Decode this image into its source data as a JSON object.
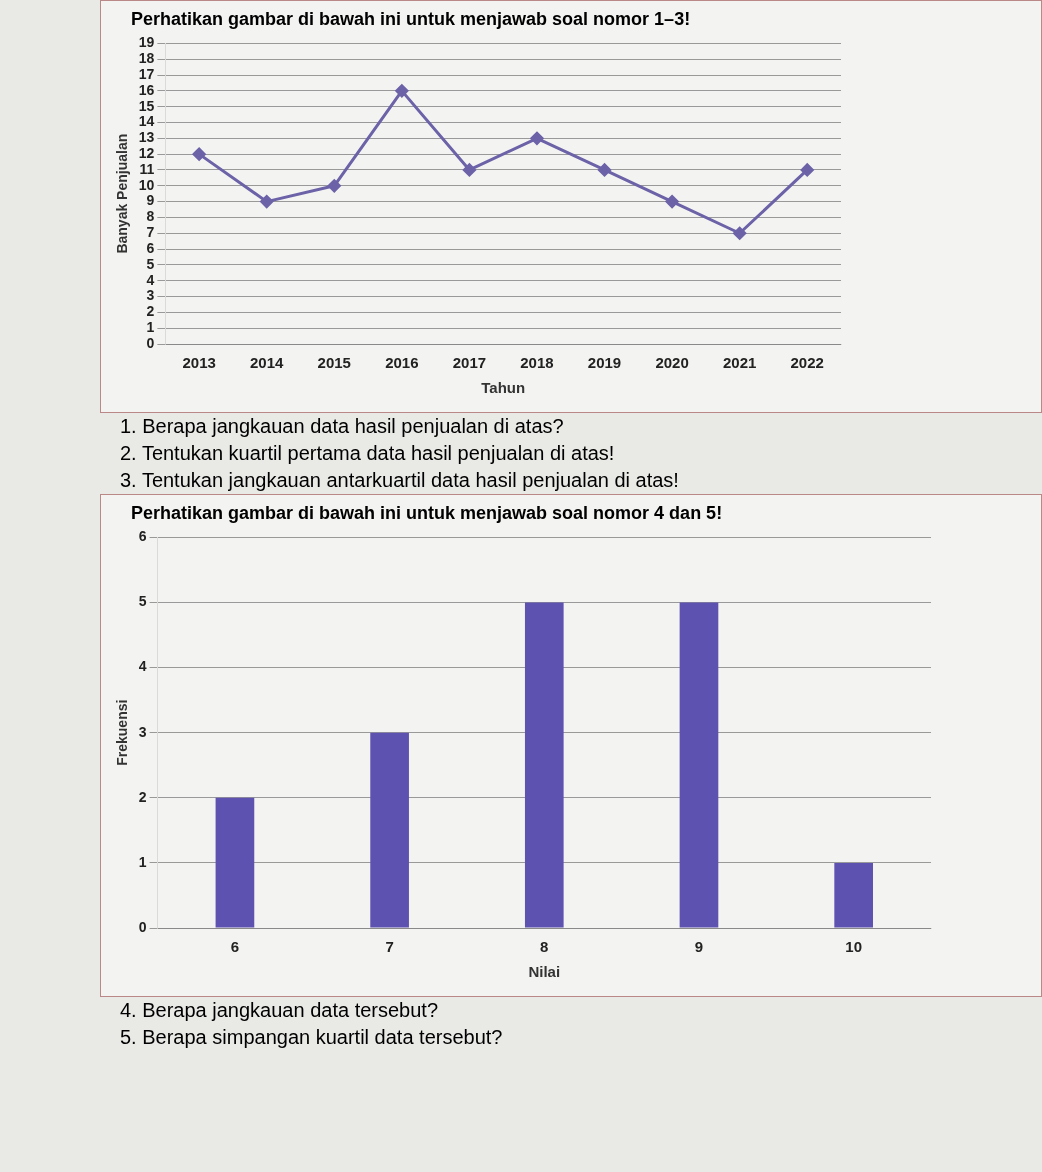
{
  "chart_data": [
    {
      "type": "line",
      "title": "Perhatikan gambar di bawah ini untuk menjawab soal nomor 1–3!",
      "categories": [
        "2013",
        "2014",
        "2015",
        "2016",
        "2017",
        "2018",
        "2019",
        "2020",
        "2021",
        "2022"
      ],
      "series": [
        {
          "color": "#6b62a8",
          "values": [
            12,
            9,
            10,
            16,
            11,
            13,
            11,
            9,
            7,
            11
          ]
        }
      ],
      "xlabel": "Tahun",
      "ylabel": "Banyak Penjualan",
      "ylim": [
        0,
        19
      ],
      "yticks": [
        0,
        1,
        2,
        3,
        4,
        5,
        6,
        7,
        8,
        9,
        10,
        11,
        12,
        13,
        14,
        15,
        16,
        17,
        18,
        19
      ],
      "grid": "y",
      "legend": false,
      "marker": "diamond",
      "line_style": "solid",
      "annotations": [
        "1. Berapa jangkauan data hasil penjualan di atas?",
        "2. Tentukan kuartil pertama data hasil penjualan di atas!",
        "3. Tentukan jangkauan antarkuartil data hasil penjualan di atas!"
      ]
    },
    {
      "type": "bar",
      "title": "Perhatikan gambar di bawah ini untuk menjawab soal nomor 4 dan 5!",
      "categories": [
        "6",
        "7",
        "8",
        "9",
        "10"
      ],
      "series": [
        {
          "color": "#5e52b0",
          "values": [
            2,
            3,
            5,
            5,
            1
          ]
        }
      ],
      "xlabel": "Nilai",
      "ylabel": "Frekuensi",
      "ylim": [
        0,
        6
      ],
      "yticks": [
        0,
        1,
        2,
        3,
        4,
        5,
        6
      ],
      "grid": "y",
      "legend": false,
      "annotations": [
        "4. Berapa jangkauan data tersebut?",
        "5. Berapa simpangan kuartil data tersebut?"
      ]
    }
  ]
}
